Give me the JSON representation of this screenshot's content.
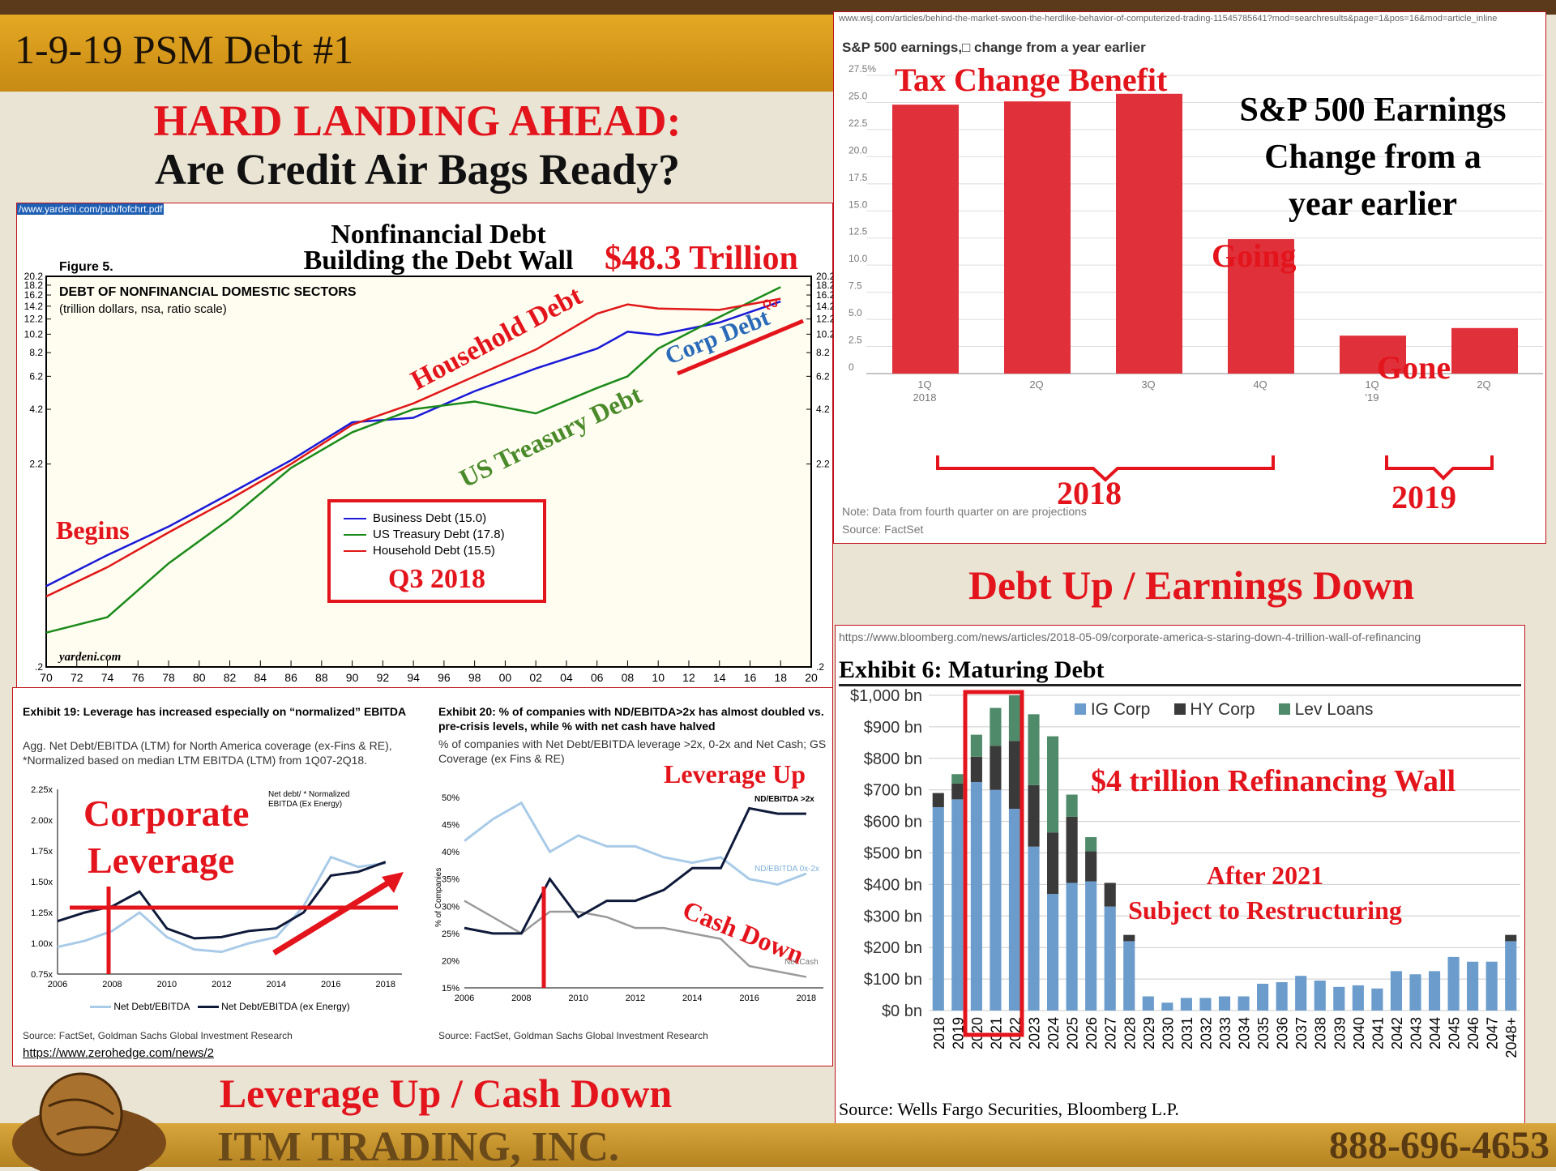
{
  "slide": {
    "title": "1-9-19 PSM Debt #1",
    "headline1": "HARD LANDING AHEAD:",
    "headline2": "Are Credit Air Bags Ready?",
    "footer_company": "ITM TRADING, INC.",
    "footer_phone": "888-696-4653"
  },
  "debt_chart": {
    "url": "/www.yardeni.com/pub/fofchrt.pdf",
    "title1": "Nonfinancial Debt",
    "title2": "Building the Debt Wall",
    "total": "$48.3 Trillion",
    "figure_label": "Figure 5.",
    "inner_title": "DEBT OF NONFINANCIAL DOMESTIC SECTORS",
    "inner_subtitle": "(trillion dollars, nsa, ratio scale)",
    "label_household": "Household Debt",
    "label_treasury": "US Treasury Debt",
    "label_corp": "Corp Debt",
    "label_begins": "Begins",
    "q3_marker": "Q3",
    "legend": [
      "Business Debt (15.0)",
      "US Treasury Debt (17.8)",
      "Household Debt (15.5)"
    ],
    "legend_caption": "Q3 2018",
    "watermark": "yardeni.com"
  },
  "sp_chart": {
    "url": "www.wsj.com/articles/behind-the-market-swoon-the-herdlike-behavior-of-computerized-trading-11545785641?mod=searchresults&page=1&pos=16&mod=article_inline",
    "header": "S&P 500 earnings,□ change from a year earlier",
    "label_tax": "Tax Change Benefit",
    "big_title": [
      "S&P 500 Earnings",
      "Change from a",
      "year earlier"
    ],
    "label_going": "Going",
    "label_gone": "Gone",
    "group_2018": "2018",
    "group_2019": "2019",
    "note": "Note: Data from fourth quarter on are projections",
    "source": "Source: FactSet"
  },
  "debt_earnings_caption": "Debt Up / Earnings Down",
  "gs_panel": {
    "ex19_title": "Exhibit 19: Leverage has increased especially on “normalized” EBITDA",
    "ex19_sub": "Agg. Net Debt/EBITDA (LTM) for North America coverage (ex-Fins & RE), *Normalized based on median LTM EBITDA (LTM) from 1Q07-2Q18.",
    "ex19_overlay1": "Corporate",
    "ex19_overlay2": "Leverage",
    "ex19_note": "Net debt/ * Normalized EBITDA (Ex Energy)",
    "ex19_legend": [
      "Net Debt/EBITDA",
      "Net Debt/EBITDA (ex Energy)"
    ],
    "ex19_source": "Source: FactSet, Goldman Sachs Global Investment Research",
    "ex19_link": "https://www.zerohedge.com/news/2",
    "ex20_title": "Exhibit 20: % of companies with ND/EBITDA>2x has almost doubled vs. pre-crisis levels, while % with net cash have halved",
    "ex20_sub": "% of companies with Net Debt/EBITDA leverage >2x, 0-2x and Net Cash; GS Coverage (ex Fins & RE)",
    "ex20_lev_up": "Leverage Up",
    "ex20_cash_down": "Cash Down",
    "ex20_ylabel": "% of Companies",
    "ex20_series": [
      "ND/EBITDA >2x",
      "ND/EBITDA 0x-2x",
      "Net Cash"
    ],
    "ex20_source": "Source: FactSet, Goldman Sachs Global Investment Research"
  },
  "leverage_caption": "Leverage Up / Cash Down",
  "bbg_panel": {
    "url": "https://www.bloomberg.com/news/articles/2018-05-09/corporate-america-s-staring-down-4-trillion-wall-of-refinancing",
    "title": "Exhibit 6: Maturing Debt",
    "legend": [
      "IG Corp",
      "HY Corp",
      "Lev Loans"
    ],
    "overlay1": "$4 trillion Refinancing Wall",
    "overlay2a": "After 2021",
    "overlay2b": "Subject to Restructuring",
    "source": "Source: Wells Fargo Securities, Bloomberg L.P."
  },
  "colors": {
    "accent_red": "#e3141c",
    "bar_red": "#e0303a",
    "ig_blue": "#6b9ccc",
    "hy_dark": "#3a3a3a",
    "lev_green": "#4f8a6a"
  },
  "chart_data": [
    {
      "type": "line",
      "title": "DEBT OF NONFINANCIAL DOMESTIC SECTORS",
      "ylabel": "trillion dollars, nsa, ratio scale",
      "scale": "log",
      "x_ticks": [
        "70",
        "72",
        "74",
        "76",
        "78",
        "80",
        "82",
        "84",
        "86",
        "88",
        "90",
        "92",
        "94",
        "96",
        "98",
        "00",
        "02",
        "04",
        "06",
        "08",
        "10",
        "12",
        "14",
        "16",
        "18",
        "20"
      ],
      "y_ticks": [
        ".2",
        "2.2",
        "4.2",
        "6.2",
        "8.2",
        "10.2",
        "12.2",
        "14.2",
        "16.2",
        "18.2",
        "20.2"
      ],
      "x": [
        1970,
        1974,
        1978,
        1982,
        1986,
        1990,
        1994,
        1998,
        2002,
        2006,
        2008,
        2010,
        2014,
        2018
      ],
      "series": [
        {
          "name": "Business Debt (15.0)",
          "values": [
            0.52,
            0.75,
            1.05,
            1.55,
            2.3,
            3.6,
            3.8,
            5.2,
            6.8,
            8.6,
            10.5,
            10.1,
            11.7,
            15.0
          ]
        },
        {
          "name": "US Treasury Debt (17.8)",
          "values": [
            0.3,
            0.36,
            0.68,
            1.15,
            2.1,
            3.2,
            4.2,
            4.6,
            4.0,
            5.4,
            6.2,
            8.6,
            12.5,
            17.8
          ]
        },
        {
          "name": "Household Debt (15.5)",
          "values": [
            0.46,
            0.65,
            0.98,
            1.45,
            2.2,
            3.5,
            4.5,
            6.2,
            8.5,
            13.0,
            14.5,
            13.8,
            13.6,
            15.5
          ]
        }
      ],
      "grid": false,
      "legend": "bottom-center"
    },
    {
      "type": "bar",
      "title": "S&P 500 earnings, change from a year earlier",
      "categories": [
        "1Q 2018",
        "2Q",
        "3Q",
        "4Q",
        "1Q '19",
        "2Q"
      ],
      "values": [
        24.8,
        25.1,
        25.8,
        12.4,
        3.5,
        4.2
      ],
      "y_ticks": [
        "0",
        "2.5",
        "5.0",
        "7.5",
        "10.0",
        "12.5",
        "15.0",
        "17.5",
        "20.0",
        "22.5",
        "25.0",
        "27.5%"
      ],
      "ylim": [
        0,
        27.5
      ],
      "grid": true
    },
    {
      "type": "line",
      "title": "Exhibit 19",
      "x_ticks": [
        "2006",
        "2008",
        "2010",
        "2012",
        "2014",
        "2016",
        "2018"
      ],
      "y_ticks": [
        "0.75x",
        "1.00x",
        "1.25x",
        "1.50x",
        "1.75x",
        "2.00x",
        "2.25x"
      ],
      "x": [
        2006,
        2007,
        2008,
        2009,
        2010,
        2011,
        2012,
        2013,
        2014,
        2015,
        2016,
        2017,
        2018
      ],
      "series": [
        {
          "name": "Net Debt/EBITDA",
          "values": [
            0.97,
            1.02,
            1.1,
            1.25,
            1.05,
            0.95,
            0.93,
            1.0,
            1.05,
            1.3,
            1.7,
            1.62,
            1.65
          ]
        },
        {
          "name": "Net Debt/EBITDA (ex Energy)",
          "values": [
            1.18,
            1.25,
            1.3,
            1.42,
            1.12,
            1.04,
            1.05,
            1.1,
            1.12,
            1.25,
            1.55,
            1.58,
            1.66
          ]
        }
      ],
      "ylim": [
        0.75,
        2.25
      ]
    },
    {
      "type": "line",
      "title": "Exhibit 20",
      "ylabel": "% of Companies",
      "x_ticks": [
        "2006",
        "2008",
        "2010",
        "2012",
        "2014",
        "2016",
        "2018"
      ],
      "y_ticks": [
        "15%",
        "20%",
        "25%",
        "30%",
        "35%",
        "40%",
        "45%",
        "50%"
      ],
      "x": [
        2006,
        2007,
        2008,
        2009,
        2010,
        2011,
        2012,
        2013,
        2014,
        2015,
        2016,
        2017,
        2018
      ],
      "series": [
        {
          "name": "ND/EBITDA >2x",
          "values": [
            26,
            25,
            25,
            35,
            28,
            31,
            31,
            33,
            37,
            37,
            48,
            47,
            47
          ]
        },
        {
          "name": "ND/EBITDA 0x-2x",
          "values": [
            42,
            46,
            49,
            40,
            43,
            41,
            41,
            39,
            38,
            39,
            35,
            34,
            36
          ]
        },
        {
          "name": "Net Cash",
          "values": [
            31,
            28,
            25,
            29,
            29,
            28,
            26,
            26,
            25,
            24,
            19,
            18,
            17
          ]
        }
      ],
      "ylim": [
        15,
        50
      ]
    },
    {
      "type": "bar",
      "title": "Exhibit 6: Maturing Debt",
      "categories": [
        "2018",
        "2019",
        "2020",
        "2021",
        "2022",
        "2023",
        "2024",
        "2025",
        "2026",
        "2027",
        "2028",
        "2029",
        "2030",
        "2031",
        "2032",
        "2033",
        "2034",
        "2035",
        "2036",
        "2037",
        "2038",
        "2039",
        "2040",
        "2041",
        "2042",
        "2043",
        "2044",
        "2045",
        "2046",
        "2047",
        "2048+"
      ],
      "y_ticks": [
        "$0 bn",
        "$100 bn",
        "$200 bn",
        "$300 bn",
        "$400 bn",
        "$500 bn",
        "$600 bn",
        "$700 bn",
        "$800 bn",
        "$900 bn",
        "$1,000 bn"
      ],
      "series": [
        {
          "name": "IG Corp",
          "values": [
            645,
            670,
            725,
            700,
            640,
            520,
            370,
            405,
            410,
            330,
            220,
            45,
            25,
            40,
            40,
            45,
            45,
            85,
            90,
            110,
            95,
            75,
            80,
            70,
            125,
            115,
            125,
            170,
            155,
            155,
            220
          ]
        },
        {
          "name": "HY Corp",
          "values": [
            45,
            50,
            80,
            140,
            215,
            195,
            195,
            210,
            95,
            75,
            20,
            0,
            0,
            0,
            0,
            0,
            0,
            0,
            0,
            0,
            0,
            0,
            0,
            0,
            0,
            0,
            0,
            0,
            0,
            0,
            20
          ]
        },
        {
          "name": "Lev Loans",
          "values": [
            0,
            30,
            70,
            120,
            145,
            225,
            305,
            70,
            45,
            0,
            0,
            0,
            0,
            0,
            0,
            0,
            0,
            0,
            0,
            0,
            0,
            0,
            0,
            0,
            0,
            0,
            0,
            0,
            0,
            0,
            0
          ]
        }
      ],
      "ylim": [
        0,
        1000
      ],
      "stacked": true,
      "legend": "top"
    }
  ]
}
